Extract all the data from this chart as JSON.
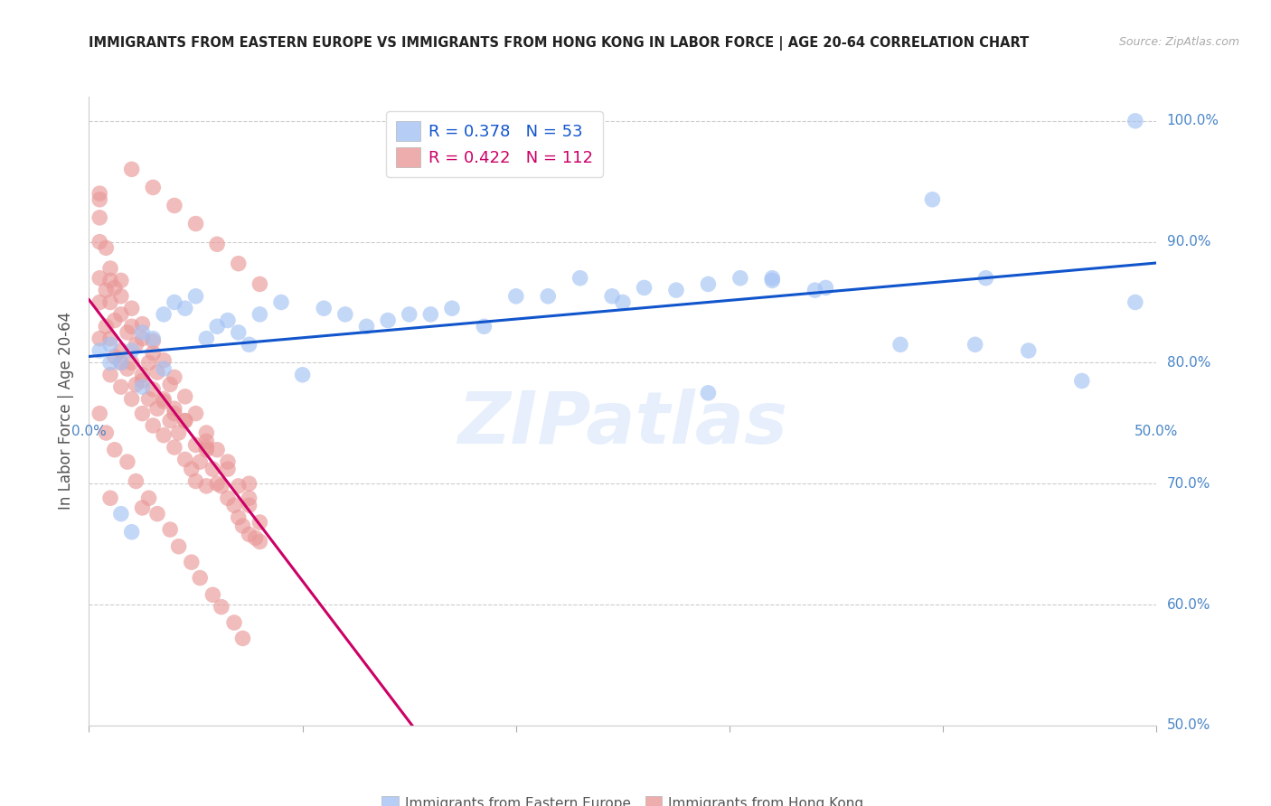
{
  "title": "IMMIGRANTS FROM EASTERN EUROPE VS IMMIGRANTS FROM HONG KONG IN LABOR FORCE | AGE 20-64 CORRELATION CHART",
  "source": "Source: ZipAtlas.com",
  "ylabel": "In Labor Force | Age 20-64",
  "xlim": [
    0.0,
    0.5
  ],
  "ylim": [
    0.5,
    1.02
  ],
  "yticks": [
    0.5,
    0.6,
    0.7,
    0.8,
    0.9,
    1.0
  ],
  "ytick_labels": [
    "50.0%",
    "60.0%",
    "70.0%",
    "80.0%",
    "90.0%",
    "100.0%"
  ],
  "xtick_left_label": "0.0%",
  "xtick_right_label": "50.0%",
  "blue_color": "#a4c2f4",
  "pink_color": "#ea9999",
  "line_blue": "#1155cc",
  "line_pink": "#cc0066",
  "R_blue": 0.378,
  "N_blue": 53,
  "R_pink": 0.422,
  "N_pink": 112,
  "watermark": "ZIPatlas",
  "legend_label_blue": "Immigrants from Eastern Europe",
  "legend_label_pink": "Immigrants from Hong Kong",
  "blue_scatter_color": "#a4c2f4",
  "pink_scatter_color": "#ea9999",
  "blue_x": [
    0.005,
    0.01,
    0.015,
    0.02,
    0.025,
    0.03,
    0.035,
    0.04,
    0.045,
    0.05,
    0.055,
    0.06,
    0.065,
    0.07,
    0.075,
    0.08,
    0.09,
    0.1,
    0.11,
    0.12,
    0.13,
    0.14,
    0.15,
    0.16,
    0.17,
    0.185,
    0.2,
    0.215,
    0.23,
    0.245,
    0.26,
    0.275,
    0.29,
    0.305,
    0.32,
    0.34,
    0.025,
    0.035,
    0.02,
    0.015,
    0.01,
    0.25,
    0.32,
    0.345,
    0.38,
    0.415,
    0.44,
    0.465,
    0.49,
    0.395,
    0.42,
    0.29,
    0.49
  ],
  "blue_y": [
    0.81,
    0.815,
    0.8,
    0.81,
    0.825,
    0.82,
    0.84,
    0.85,
    0.845,
    0.855,
    0.82,
    0.83,
    0.835,
    0.825,
    0.815,
    0.84,
    0.85,
    0.79,
    0.845,
    0.84,
    0.83,
    0.835,
    0.84,
    0.84,
    0.845,
    0.83,
    0.855,
    0.855,
    0.87,
    0.855,
    0.862,
    0.86,
    0.865,
    0.87,
    0.868,
    0.86,
    0.78,
    0.795,
    0.66,
    0.675,
    0.8,
    0.85,
    0.87,
    0.862,
    0.815,
    0.815,
    0.81,
    0.785,
    1.0,
    0.935,
    0.87,
    0.775,
    0.85
  ],
  "pink_x": [
    0.005,
    0.005,
    0.005,
    0.005,
    0.005,
    0.005,
    0.005,
    0.008,
    0.008,
    0.008,
    0.01,
    0.01,
    0.01,
    0.01,
    0.012,
    0.012,
    0.012,
    0.015,
    0.015,
    0.015,
    0.015,
    0.018,
    0.018,
    0.02,
    0.02,
    0.02,
    0.022,
    0.022,
    0.025,
    0.025,
    0.025,
    0.028,
    0.028,
    0.03,
    0.03,
    0.03,
    0.032,
    0.032,
    0.035,
    0.035,
    0.038,
    0.038,
    0.04,
    0.04,
    0.042,
    0.045,
    0.045,
    0.048,
    0.05,
    0.05,
    0.052,
    0.055,
    0.055,
    0.058,
    0.06,
    0.062,
    0.065,
    0.068,
    0.07,
    0.072,
    0.075,
    0.075,
    0.078,
    0.08,
    0.01,
    0.015,
    0.02,
    0.025,
    0.03,
    0.035,
    0.04,
    0.045,
    0.05,
    0.055,
    0.06,
    0.065,
    0.07,
    0.075,
    0.08,
    0.005,
    0.008,
    0.012,
    0.018,
    0.022,
    0.028,
    0.032,
    0.038,
    0.042,
    0.048,
    0.052,
    0.058,
    0.062,
    0.068,
    0.072,
    0.015,
    0.025,
    0.035,
    0.045,
    0.055,
    0.065,
    0.075,
    0.02,
    0.03,
    0.04,
    0.05,
    0.06,
    0.07,
    0.08,
    0.01,
    0.025,
    0.04,
    0.055
  ],
  "pink_y": [
    0.82,
    0.85,
    0.87,
    0.9,
    0.92,
    0.935,
    0.94,
    0.83,
    0.86,
    0.895,
    0.79,
    0.82,
    0.85,
    0.878,
    0.805,
    0.835,
    0.862,
    0.78,
    0.81,
    0.84,
    0.868,
    0.795,
    0.825,
    0.77,
    0.8,
    0.83,
    0.782,
    0.815,
    0.758,
    0.79,
    0.82,
    0.77,
    0.8,
    0.748,
    0.778,
    0.808,
    0.762,
    0.792,
    0.74,
    0.77,
    0.752,
    0.782,
    0.73,
    0.762,
    0.742,
    0.72,
    0.752,
    0.712,
    0.702,
    0.732,
    0.718,
    0.698,
    0.728,
    0.712,
    0.7,
    0.698,
    0.688,
    0.682,
    0.672,
    0.665,
    0.658,
    0.688,
    0.655,
    0.652,
    0.868,
    0.855,
    0.845,
    0.832,
    0.818,
    0.802,
    0.788,
    0.772,
    0.758,
    0.742,
    0.728,
    0.712,
    0.698,
    0.682,
    0.668,
    0.758,
    0.742,
    0.728,
    0.718,
    0.702,
    0.688,
    0.675,
    0.662,
    0.648,
    0.635,
    0.622,
    0.608,
    0.598,
    0.585,
    0.572,
    0.8,
    0.785,
    0.768,
    0.752,
    0.735,
    0.718,
    0.7,
    0.96,
    0.945,
    0.93,
    0.915,
    0.898,
    0.882,
    0.865,
    0.688,
    0.68,
    0.758,
    0.73
  ]
}
